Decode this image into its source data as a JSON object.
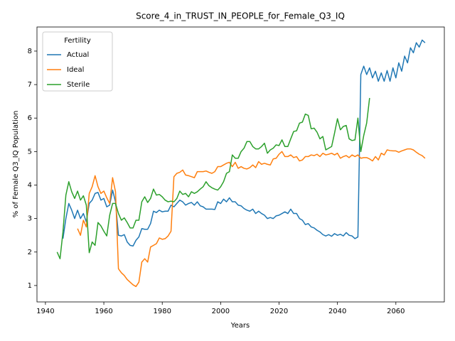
{
  "chart_data": {
    "type": "line",
    "title": "Score_4_in_TRUST_IN_PEOPLE_for_Female_Q3_IQ",
    "xlabel": "Years",
    "ylabel": "% of Female Q3_IQ Population",
    "legend_title": "Fertility",
    "legend": "upper left",
    "xlim": [
      1937.1,
      2076.6
    ],
    "ylim": [
      0.51,
      8.72
    ],
    "xticks": [
      1940,
      1960,
      1980,
      2000,
      2020,
      2040,
      2060
    ],
    "yticks": [
      1,
      2,
      3,
      4,
      5,
      6,
      7,
      8
    ],
    "x": [
      1944,
      1945,
      1946,
      1947,
      1948,
      1949,
      1950,
      1951,
      1952,
      1953,
      1954,
      1955,
      1956,
      1957,
      1958,
      1959,
      1960,
      1961,
      1962,
      1963,
      1964,
      1965,
      1966,
      1967,
      1968,
      1969,
      1970,
      1971,
      1972,
      1973,
      1974,
      1975,
      1976,
      1977,
      1978,
      1979,
      1980,
      1981,
      1982,
      1983,
      1984,
      1985,
      1986,
      1987,
      1988,
      1989,
      1990,
      1991,
      1992,
      1993,
      1994,
      1995,
      1996,
      1997,
      1998,
      1999,
      2000,
      2001,
      2002,
      2003,
      2004,
      2005,
      2006,
      2007,
      2008,
      2009,
      2010,
      2011,
      2012,
      2013,
      2014,
      2015,
      2016,
      2017,
      2018,
      2019,
      2020,
      2021,
      2022,
      2023,
      2024,
      2025,
      2026,
      2027,
      2028,
      2029,
      2030,
      2031,
      2032,
      2033,
      2034,
      2035,
      2036,
      2037,
      2038,
      2039,
      2040,
      2041,
      2042,
      2043,
      2044,
      2045,
      2046,
      2047,
      2048,
      2049,
      2050,
      2051,
      2052,
      2053,
      2054,
      2055,
      2056,
      2057,
      2058,
      2059,
      2060,
      2061,
      2062,
      2063,
      2064,
      2065,
      2066,
      2067,
      2068,
      2069,
      2070
    ],
    "series": [
      {
        "name": "Actual",
        "color": "#1f77b4",
        "values": [
          null,
          null,
          2.4,
          3.0,
          3.45,
          3.25,
          3.0,
          3.25,
          3.0,
          3.15,
          2.9,
          3.45,
          3.55,
          3.75,
          3.78,
          3.55,
          3.6,
          3.35,
          3.4,
          3.85,
          3.5,
          2.5,
          2.48,
          2.52,
          2.3,
          2.2,
          2.18,
          2.35,
          2.45,
          2.7,
          2.68,
          2.68,
          2.85,
          3.22,
          3.18,
          3.25,
          3.2,
          3.22,
          3.22,
          3.4,
          3.35,
          3.45,
          3.55,
          3.5,
          3.4,
          3.45,
          3.48,
          3.4,
          3.5,
          3.38,
          3.35,
          3.28,
          3.28,
          3.28,
          3.27,
          3.5,
          3.45,
          3.58,
          3.5,
          3.62,
          3.5,
          3.5,
          3.4,
          3.38,
          3.3,
          3.25,
          3.22,
          3.28,
          3.15,
          3.22,
          3.15,
          3.1,
          3.0,
          3.03,
          3.0,
          3.08,
          3.1,
          3.15,
          3.2,
          3.15,
          3.28,
          3.15,
          3.15,
          3.0,
          2.95,
          2.82,
          2.85,
          2.75,
          2.72,
          2.65,
          2.6,
          2.52,
          2.48,
          2.52,
          2.47,
          2.55,
          2.5,
          2.53,
          2.48,
          2.58,
          2.5,
          2.48,
          2.4,
          2.45,
          7.3,
          7.55,
          7.3,
          7.5,
          7.2,
          7.4,
          7.1,
          7.35,
          7.1,
          7.42,
          7.1,
          7.5,
          7.2,
          7.65,
          7.4,
          7.85,
          7.65,
          8.1,
          7.95,
          8.25,
          8.12,
          8.33,
          8.25
        ]
      },
      {
        "name": "Ideal",
        "color": "#ff7f0e",
        "values": [
          null,
          null,
          null,
          null,
          null,
          null,
          null,
          2.7,
          2.5,
          2.95,
          2.75,
          3.75,
          3.95,
          4.28,
          3.95,
          3.75,
          3.82,
          3.62,
          3.45,
          4.22,
          3.8,
          1.5,
          1.38,
          1.3,
          1.18,
          1.1,
          1.02,
          0.97,
          1.1,
          1.7,
          1.8,
          1.7,
          2.15,
          2.2,
          2.25,
          2.42,
          2.38,
          2.4,
          2.48,
          2.62,
          4.25,
          4.35,
          4.38,
          4.45,
          4.3,
          4.28,
          4.25,
          4.22,
          4.4,
          4.4,
          4.4,
          4.42,
          4.38,
          4.35,
          4.4,
          4.55,
          4.55,
          4.6,
          4.65,
          4.68,
          4.55,
          4.68,
          4.5,
          4.55,
          4.5,
          4.48,
          4.52,
          4.6,
          4.52,
          4.7,
          4.62,
          4.65,
          4.62,
          4.6,
          4.78,
          4.8,
          4.92,
          5.0,
          4.85,
          4.85,
          4.9,
          4.82,
          4.85,
          4.72,
          4.75,
          4.85,
          4.85,
          4.9,
          4.88,
          4.92,
          4.85,
          4.95,
          4.9,
          4.92,
          4.95,
          4.9,
          4.95,
          4.8,
          4.85,
          4.88,
          4.82,
          4.9,
          4.85,
          4.9,
          4.8,
          4.82,
          4.82,
          4.78,
          4.72,
          4.85,
          4.75,
          4.95,
          4.9,
          5.05,
          5.03,
          5.02,
          5.02,
          4.98,
          5.02,
          5.05,
          5.08,
          5.08,
          5.05,
          4.98,
          4.92,
          4.88,
          4.8
        ]
      },
      {
        "name": "Sterile",
        "color": "#2ca02c",
        "values": [
          2.0,
          1.8,
          2.6,
          3.7,
          4.1,
          3.8,
          3.6,
          3.82,
          3.55,
          3.68,
          3.4,
          1.98,
          2.3,
          2.2,
          2.88,
          2.78,
          2.62,
          2.48,
          3.1,
          3.45,
          3.45,
          3.15,
          2.95,
          3.02,
          2.88,
          2.72,
          2.72,
          2.95,
          2.95,
          3.5,
          3.65,
          3.48,
          3.6,
          3.88,
          3.7,
          3.72,
          3.65,
          3.55,
          3.5,
          3.52,
          3.5,
          3.6,
          3.82,
          3.72,
          3.75,
          3.65,
          3.8,
          3.75,
          3.8,
          3.88,
          3.95,
          4.1,
          3.98,
          3.92,
          3.88,
          3.85,
          3.95,
          4.1,
          4.35,
          4.4,
          4.9,
          4.8,
          4.8,
          5.0,
          5.1,
          5.3,
          5.3,
          5.15,
          5.08,
          5.08,
          5.15,
          5.25,
          4.95,
          5.05,
          5.1,
          5.2,
          5.18,
          5.35,
          5.15,
          5.15,
          5.38,
          5.6,
          5.62,
          5.85,
          5.88,
          6.12,
          6.08,
          5.68,
          5.7,
          5.58,
          5.38,
          5.45,
          5.05,
          5.1,
          5.15,
          5.55,
          5.98,
          5.65,
          5.75,
          5.78,
          5.38,
          5.33,
          5.35,
          6.0,
          5.0,
          5.48,
          5.85,
          6.6,
          null,
          null,
          null,
          null,
          null,
          null,
          null,
          null,
          null,
          null,
          null,
          null,
          null,
          null,
          null,
          null,
          null,
          null,
          null
        ]
      }
    ]
  }
}
